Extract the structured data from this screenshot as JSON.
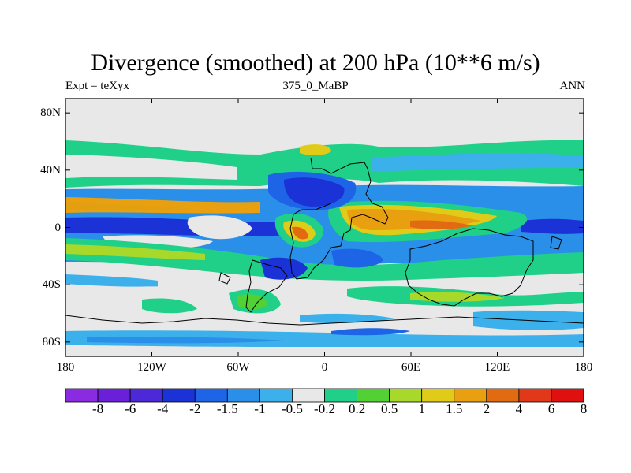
{
  "title": "Divergence (smoothed) at 200 hPa (10**6 m/s)",
  "subtitle_left": "Expt = teXyx",
  "subtitle_center": "375_0_MaBP",
  "subtitle_right": "ANN",
  "lat_ticks": [
    {
      "label": "80N",
      "lat": 80
    },
    {
      "label": "40N",
      "lat": 40
    },
    {
      "label": "0",
      "lat": 0
    },
    {
      "label": "40S",
      "lat": -40
    },
    {
      "label": "80S",
      "lat": -80
    }
  ],
  "lon_ticks": [
    {
      "label": "180",
      "lon": -180
    },
    {
      "label": "120W",
      "lon": -120
    },
    {
      "label": "60W",
      "lon": -60
    },
    {
      "label": "0",
      "lon": 0
    },
    {
      "label": "60E",
      "lon": 60
    },
    {
      "label": "120E",
      "lon": 120
    },
    {
      "label": "180",
      "lon": 180
    }
  ],
  "map_extent": {
    "lon": [
      -180,
      180
    ],
    "lat": [
      -90,
      90
    ]
  },
  "colorbar": {
    "colors": [
      "#8a2be2",
      "#6a1fd8",
      "#4d28d8",
      "#1a32d6",
      "#1e64e6",
      "#2a8fe8",
      "#3cb0ea",
      "#e8e8e8",
      "#20d088",
      "#52d034",
      "#a8d82a",
      "#e0cc18",
      "#e8a010",
      "#e26a10",
      "#e03818",
      "#e01010"
    ],
    "labels": [
      "-8",
      "-6",
      "-4",
      "-2",
      "-1.5",
      "-1",
      "-0.5",
      "-0.2",
      "0.2",
      "0.5",
      "1",
      "1.5",
      "2",
      "4",
      "6",
      "8"
    ]
  }
}
